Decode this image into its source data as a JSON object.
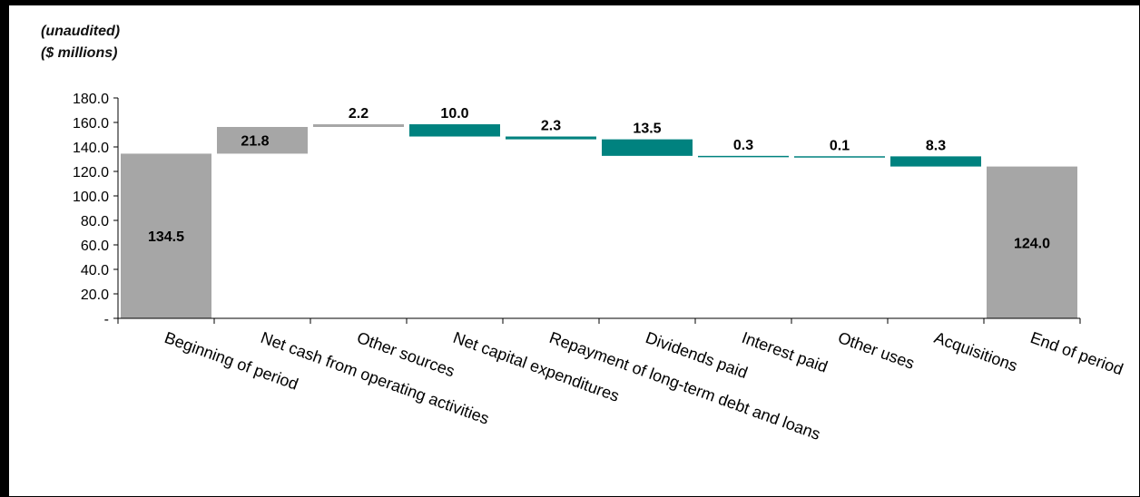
{
  "notes": {
    "line1": "(unaudited)",
    "line2": "($ millions)"
  },
  "colors": {
    "total": "#a6a6a6",
    "source": "#a6a6a6",
    "use": "#00827f",
    "axis": "#000000",
    "text": "#000000"
  },
  "chart_data": {
    "type": "bar",
    "title": "",
    "xlabel": "",
    "ylabel": "",
    "ylim": [
      0,
      180
    ],
    "yticks": [
      "-",
      "20.0",
      "40.0",
      "60.0",
      "80.0",
      "100.0",
      "120.0",
      "140.0",
      "160.0",
      "180.0"
    ],
    "grid": false,
    "legend": "none",
    "categories": [
      "Beginning of period",
      "Net cash from operating activities",
      "Other sources",
      "Net capital expenditures",
      "Repayment of long-term debt and loans",
      "Dividends paid",
      "Interest paid",
      "Other uses",
      "Acquisitions",
      "End of period"
    ],
    "values": [
      134.5,
      21.8,
      2.2,
      -10.0,
      -2.3,
      -13.5,
      -0.3,
      -0.1,
      -8.3,
      124.0
    ],
    "value_labels": [
      "134.5",
      "21.8",
      "2.2",
      "10.0",
      "2.3",
      "13.5",
      "0.3",
      "0.1",
      "8.3",
      "124.0"
    ],
    "bar_kinds": [
      "total",
      "source",
      "source",
      "use",
      "use",
      "use",
      "use",
      "use",
      "use",
      "total"
    ]
  }
}
